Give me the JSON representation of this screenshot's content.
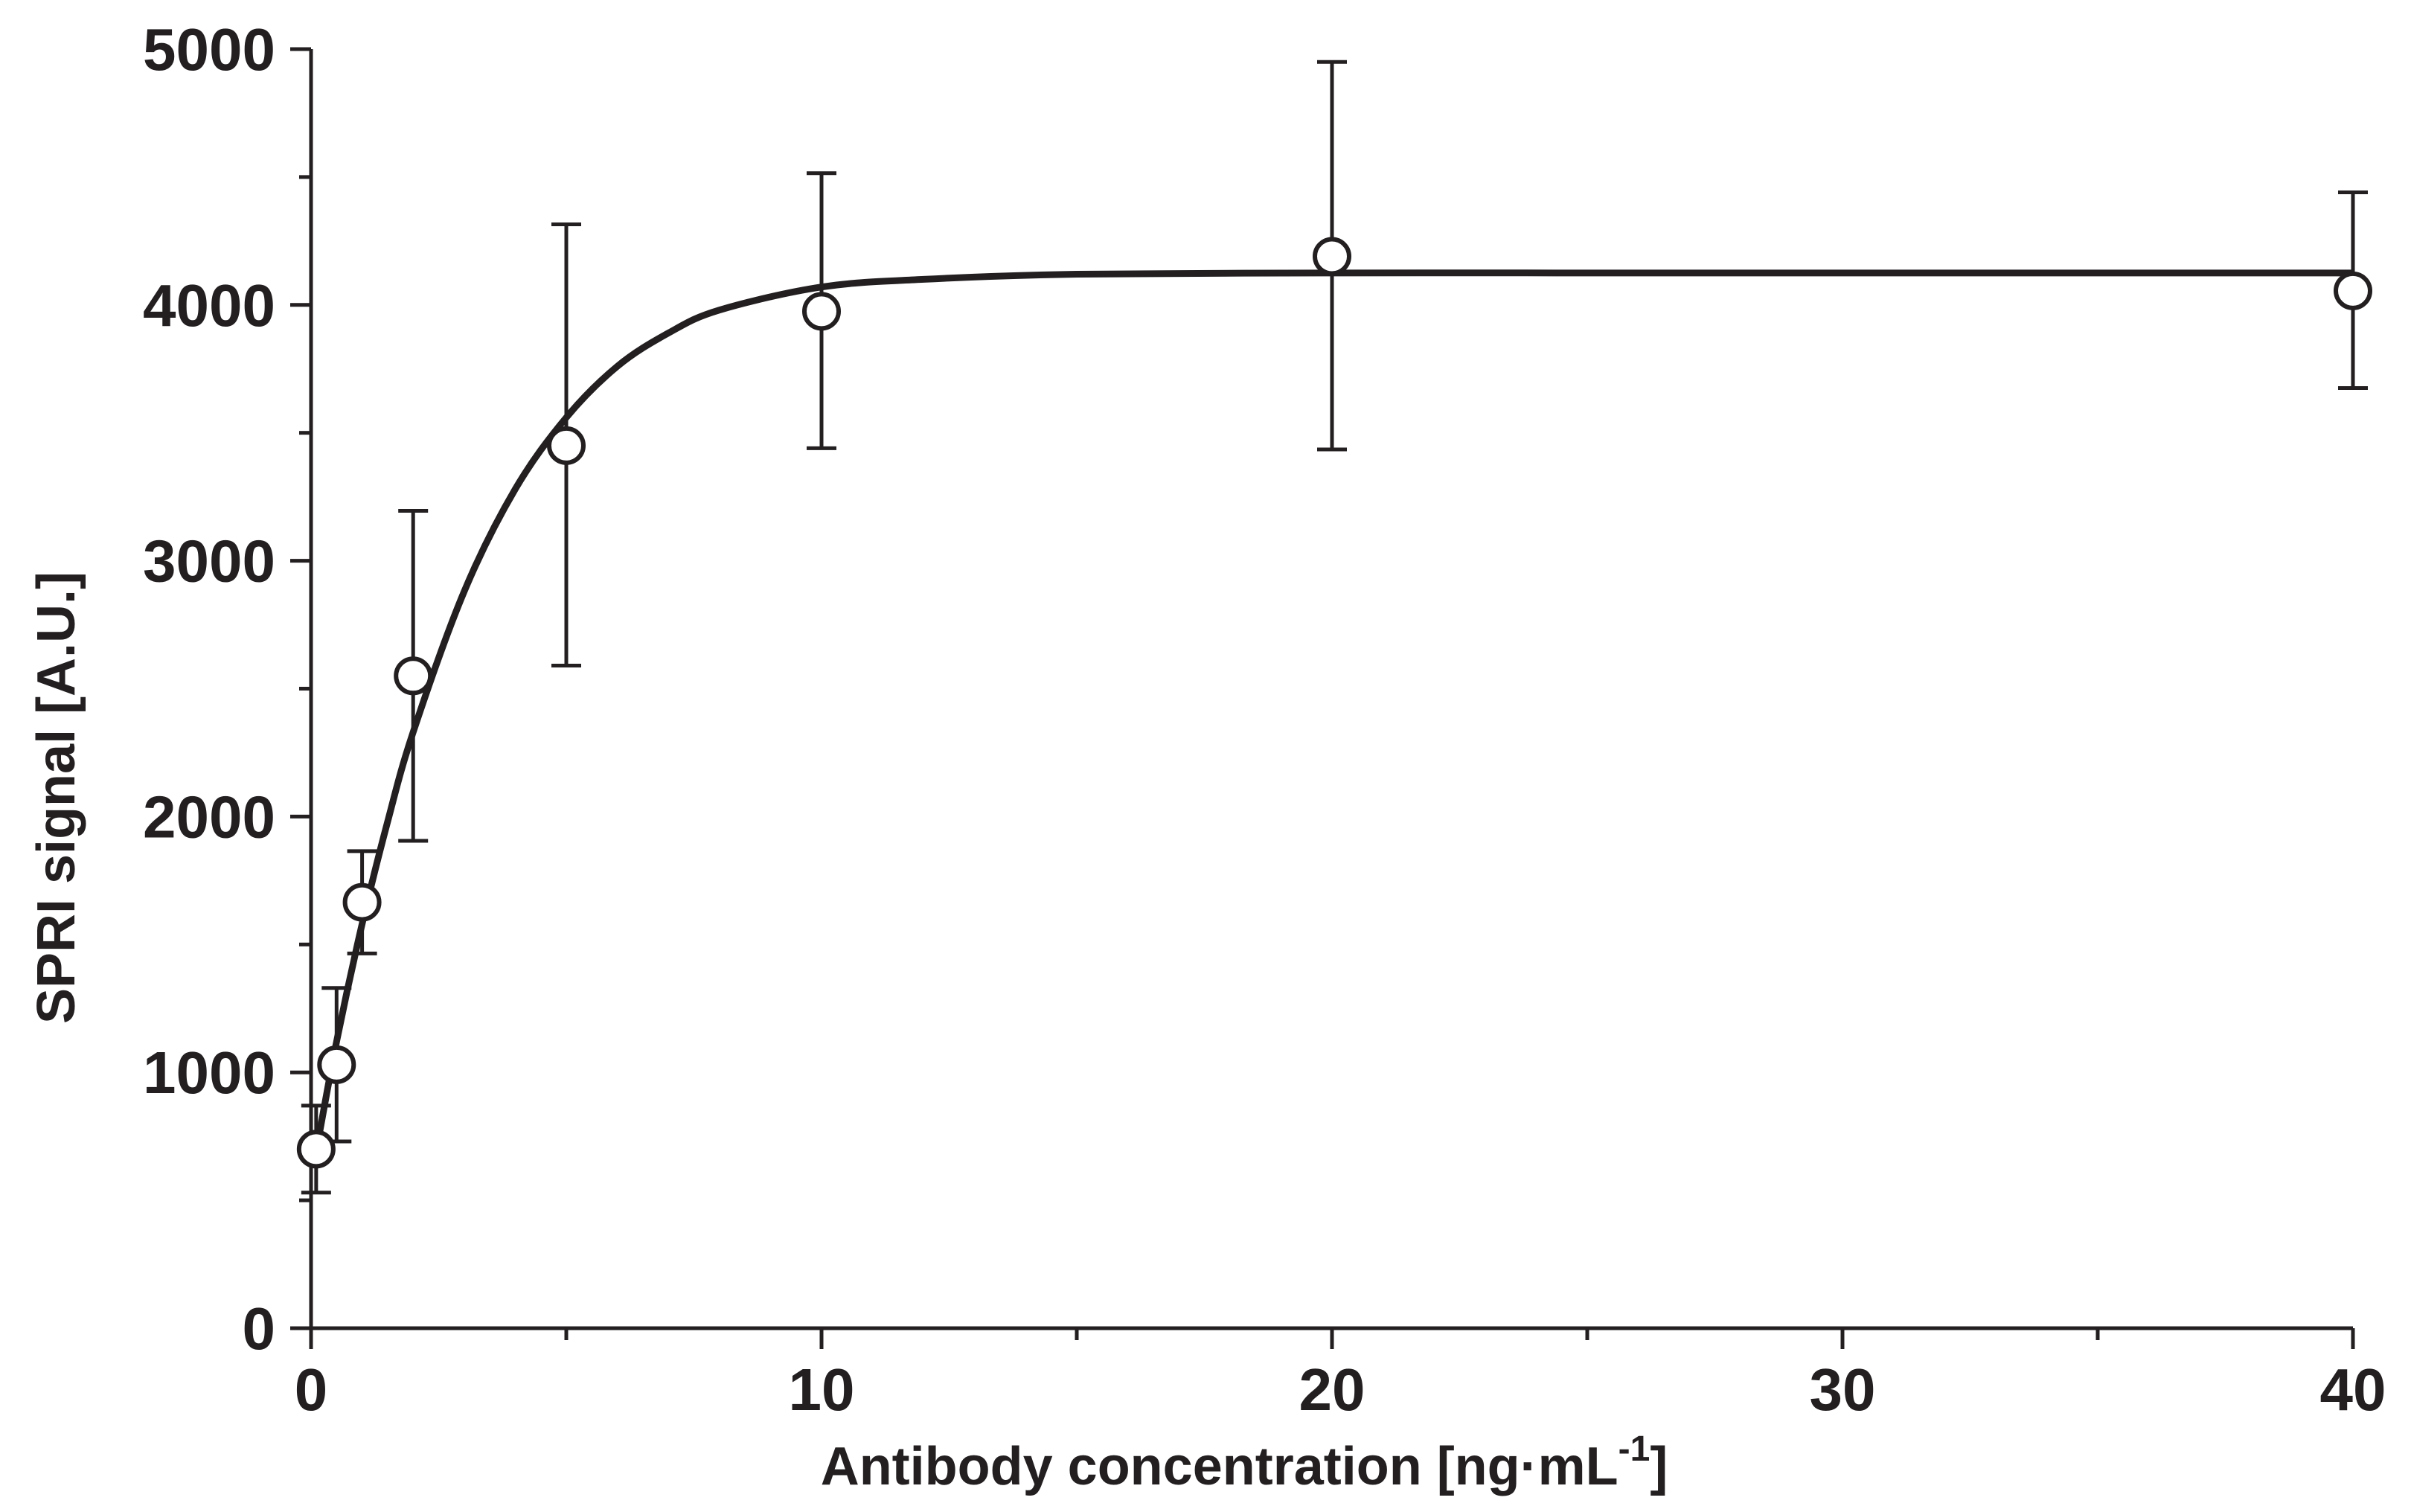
{
  "chart_data": {
    "type": "scatter",
    "title": "",
    "xlabel": "Antibody concentration [ng·mL",
    "xlabel_superscript": "-1",
    "xlabel_suffix": "]",
    "ylabel": "SPRI signal [A.U.]",
    "xlim": [
      0,
      40
    ],
    "ylim": [
      0,
      5000
    ],
    "x_major_ticks": [
      0,
      10,
      20,
      30,
      40
    ],
    "x_minor_ticks": [
      5,
      15,
      25,
      35
    ],
    "x_tick_labels": [
      "0",
      "10",
      "20",
      "30",
      "40"
    ],
    "y_ticks": [
      0,
      1000,
      2000,
      3000,
      4000,
      5000
    ],
    "y_minor_ticks": [
      500,
      1500,
      2500,
      3500,
      4500
    ],
    "y_tick_labels": [
      "0",
      "1000",
      "2000",
      "3000",
      "4000",
      "5000"
    ],
    "grid": false,
    "legend": "none",
    "points": [
      {
        "x": 0.1,
        "y": 700,
        "y_low": 530,
        "y_high": 870
      },
      {
        "x": 0.5,
        "y": 1030,
        "y_low": 730,
        "y_high": 1330
      },
      {
        "x": 1,
        "y": 1665,
        "y_low": 1465,
        "y_high": 1865
      },
      {
        "x": 2,
        "y": 2550,
        "y_low": 1905,
        "y_high": 3195
      },
      {
        "x": 5,
        "y": 3450,
        "y_low": 2590,
        "y_high": 4315
      },
      {
        "x": 10,
        "y": 3975,
        "y_low": 3440,
        "y_high": 4515
      },
      {
        "x": 20,
        "y": 4190,
        "y_low": 3435,
        "y_high": 4950
      },
      {
        "x": 40,
        "y": 4055,
        "y_low": 3675,
        "y_high": 4440
      }
    ],
    "fit": {
      "model": "exponential rise to maximum",
      "x": [
        0.1,
        0.5,
        1,
        1.5,
        2,
        3,
        4,
        5,
        6,
        7,
        8,
        10,
        12,
        15,
        20,
        25,
        30,
        35,
        40
      ],
      "y": [
        690,
        1120,
        1580,
        1980,
        2330,
        2880,
        3280,
        3560,
        3760,
        3890,
        3980,
        4070,
        4100,
        4120,
        4125,
        4125,
        4125,
        4125,
        4125
      ]
    }
  }
}
